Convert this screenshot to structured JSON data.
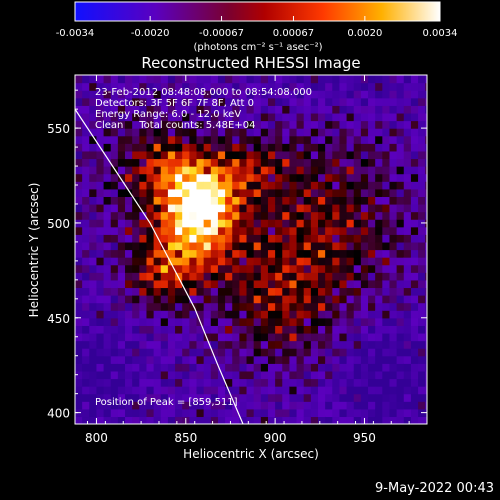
{
  "chart_data": {
    "type": "heatmap",
    "title": "Reconstructed RHESSI Image",
    "xlabel": "Heliocentric X (arcsec)",
    "ylabel": "Heliocentric Y (arcsec)",
    "xlim": [
      788,
      985
    ],
    "ylim": [
      394,
      578
    ],
    "x_ticks": [
      800,
      850,
      900,
      950
    ],
    "y_ticks": [
      400,
      450,
      500,
      550
    ],
    "colorbar": {
      "min": -0.0034,
      "max": 0.0034,
      "tick_values": [
        -0.0034,
        -0.002,
        -0.00067,
        0.00067,
        0.002,
        0.0034
      ],
      "tick_labels": [
        "-0.0034",
        "-0.0020",
        "-0.00067",
        "0.00067",
        "0.0020",
        "0.0034"
      ],
      "units_text": "(photons cm⁻² s⁻¹ asec⁻²)",
      "colormap": [
        "#0000ff",
        "#5a00b8",
        "#8a0028",
        "#c80000",
        "#ff6a00",
        "#ffd020",
        "#ffffff"
      ]
    },
    "annotations": [
      "23-Feb-2012 08:48:08.000 to 08:54:08.000",
      "Detectors: 3F 5F 6F 7F 8F, Att 0",
      "Energy Range: 6.0 - 12.0 keV",
      "Clean     Total counts: 5.48E+04"
    ],
    "peak_label": "Position of Peak = [859,511]",
    "peak": [
      859,
      511
    ],
    "limb_curve": [
      [
        788,
        560
      ],
      [
        830,
        500
      ],
      [
        855,
        455
      ],
      [
        868,
        425
      ],
      [
        882,
        394
      ]
    ]
  },
  "footer": {
    "timestamp": "9-May-2022 00:43"
  }
}
